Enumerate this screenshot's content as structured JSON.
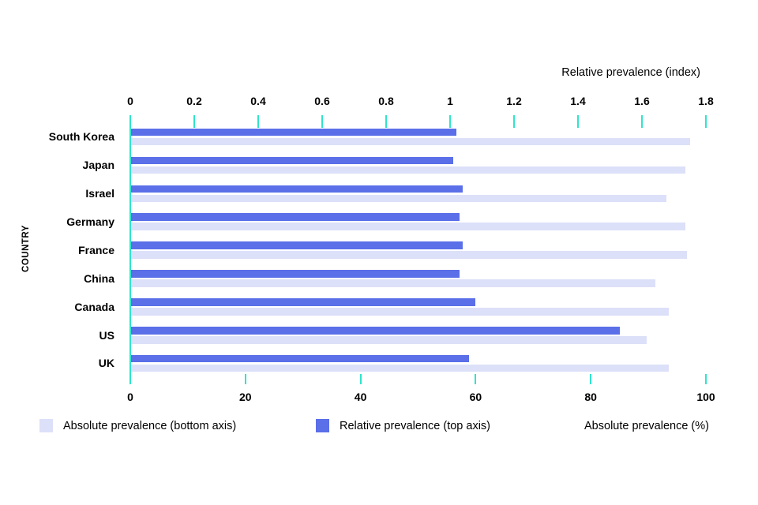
{
  "chart_data": {
    "type": "bar",
    "orientation": "horizontal",
    "title": "",
    "categories": [
      "South Korea",
      "Japan",
      "Israel",
      "Germany",
      "France",
      "China",
      "Canada",
      "US",
      "UK"
    ],
    "series": [
      {
        "name": "Absolute prevalence (bottom axis)",
        "axis": "bottom",
        "unit": "%",
        "values": [
          97.3,
          96.4,
          93.1,
          96.4,
          96.7,
          91.2,
          93.5,
          89.7,
          93.6
        ]
      },
      {
        "name": "Relative prevalence (top axis)",
        "axis": "top",
        "unit": "index",
        "values": [
          1.02,
          1.01,
          1.04,
          1.03,
          1.04,
          1.03,
          1.08,
          1.53,
          1.06
        ]
      }
    ],
    "top_axis": {
      "title": "Relative prevalence (index)",
      "min": 0,
      "max": 1.8,
      "tick_step": 0.2,
      "tick_labels": [
        "0",
        "0.2",
        "0.4",
        "0.6",
        "0.8",
        "1",
        "1.2",
        "1.4",
        "1.6",
        "1.8"
      ]
    },
    "bottom_axis": {
      "title": "Absolute prevalence (%)",
      "min": 0,
      "max": 100,
      "tick_step": 20,
      "tick_labels": [
        "0",
        "20",
        "40",
        "60",
        "80",
        "100"
      ]
    },
    "ylabel": "COUNTRY",
    "grid": "off",
    "legend_position": "bottom",
    "legend": [
      {
        "label": "Absolute prevalence (bottom axis)",
        "swatch_color": "#dce0f8"
      },
      {
        "label": "Relative prevalence (top axis)",
        "swatch_color": "#5a6fe8"
      }
    ],
    "colors": {
      "absolute_bar": "#dce0f8",
      "relative_bar": "#5a6fe8",
      "tick": "#2ee5cb",
      "text": "#000000",
      "background": "#ffffff"
    }
  }
}
